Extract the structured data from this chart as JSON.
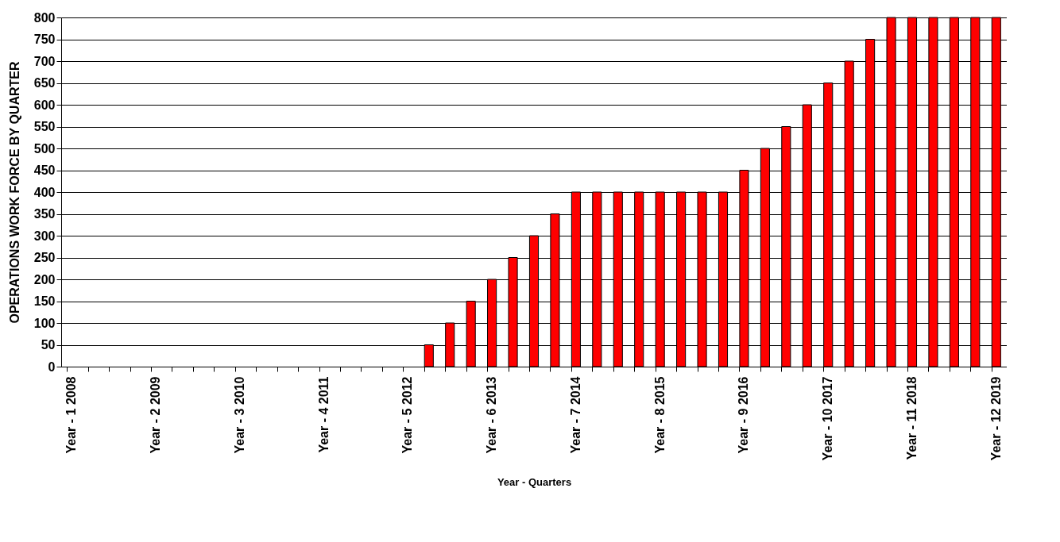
{
  "chart_data": {
    "type": "bar",
    "xlabel": "Year - Quarters",
    "ylabel": "OPERATIONS WORK FORCE BY QUARTER",
    "categories": [
      "Year - 1 2008",
      null,
      null,
      null,
      "Year - 2 2009",
      null,
      null,
      null,
      "Year - 3 2010",
      null,
      null,
      null,
      "Year - 4 2011",
      null,
      null,
      null,
      "Year - 5 2012",
      null,
      null,
      null,
      "Year - 6 2013",
      null,
      null,
      null,
      "Year - 7 2014",
      null,
      null,
      null,
      "Year - 8 2015",
      null,
      null,
      null,
      "Year - 9 2016",
      null,
      null,
      null,
      "Year - 10 2017",
      null,
      null,
      null,
      "Year - 11 2018",
      null,
      null,
      null,
      "Year - 12 2019"
    ],
    "values": [
      0,
      0,
      0,
      0,
      0,
      0,
      0,
      0,
      0,
      0,
      0,
      0,
      0,
      0,
      0,
      0,
      0,
      50,
      100,
      150,
      200,
      250,
      300,
      350,
      400,
      400,
      400,
      400,
      400,
      400,
      400,
      400,
      450,
      500,
      550,
      600,
      650,
      700,
      750,
      800,
      800,
      800,
      800,
      800,
      800
    ],
    "color": "#ff0000",
    "ylim": [
      0,
      800
    ],
    "yticks": [
      0,
      50,
      100,
      150,
      200,
      250,
      300,
      350,
      400,
      450,
      500,
      550,
      600,
      650,
      700,
      750,
      800
    ],
    "grid": "y"
  }
}
